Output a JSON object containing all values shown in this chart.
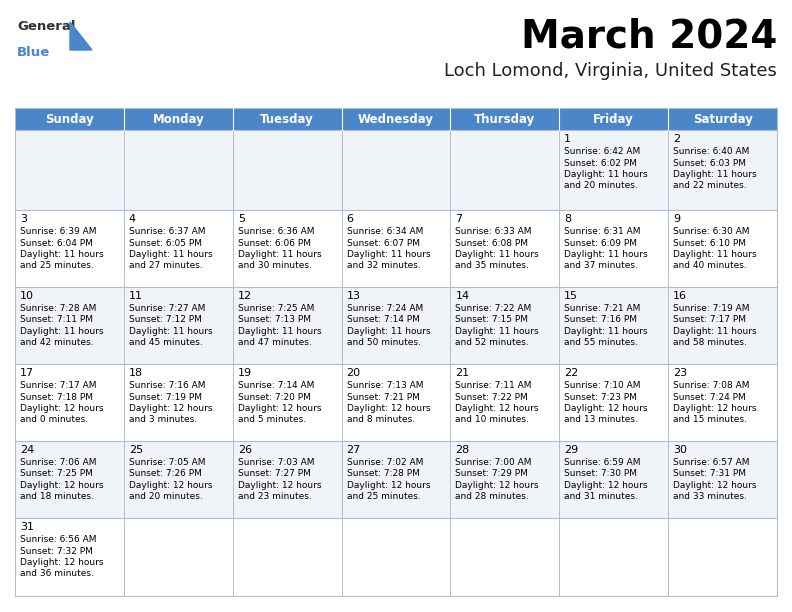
{
  "title": "March 2024",
  "subtitle": "Loch Lomond, Virginia, United States",
  "header_color": "#4a86c8",
  "header_text_color": "#ffffff",
  "cell_bg_odd": "#f0f4f8",
  "cell_bg_even": "#ffffff",
  "border_color": "#b0bcd4",
  "title_fontsize": 28,
  "subtitle_fontsize": 13,
  "dow_fontsize": 8.5,
  "day_num_fontsize": 8,
  "cell_text_fontsize": 6.5,
  "days_of_week": [
    "Sunday",
    "Monday",
    "Tuesday",
    "Wednesday",
    "Thursday",
    "Friday",
    "Saturday"
  ],
  "weeks": [
    [
      {
        "day": "",
        "sunrise": "",
        "sunset": "",
        "daylight": ""
      },
      {
        "day": "",
        "sunrise": "",
        "sunset": "",
        "daylight": ""
      },
      {
        "day": "",
        "sunrise": "",
        "sunset": "",
        "daylight": ""
      },
      {
        "day": "",
        "sunrise": "",
        "sunset": "",
        "daylight": ""
      },
      {
        "day": "",
        "sunrise": "",
        "sunset": "",
        "daylight": ""
      },
      {
        "day": "1",
        "sunrise": "6:42 AM",
        "sunset": "6:02 PM",
        "daylight": "11 hours\nand 20 minutes."
      },
      {
        "day": "2",
        "sunrise": "6:40 AM",
        "sunset": "6:03 PM",
        "daylight": "11 hours\nand 22 minutes."
      }
    ],
    [
      {
        "day": "3",
        "sunrise": "6:39 AM",
        "sunset": "6:04 PM",
        "daylight": "11 hours\nand 25 minutes."
      },
      {
        "day": "4",
        "sunrise": "6:37 AM",
        "sunset": "6:05 PM",
        "daylight": "11 hours\nand 27 minutes."
      },
      {
        "day": "5",
        "sunrise": "6:36 AM",
        "sunset": "6:06 PM",
        "daylight": "11 hours\nand 30 minutes."
      },
      {
        "day": "6",
        "sunrise": "6:34 AM",
        "sunset": "6:07 PM",
        "daylight": "11 hours\nand 32 minutes."
      },
      {
        "day": "7",
        "sunrise": "6:33 AM",
        "sunset": "6:08 PM",
        "daylight": "11 hours\nand 35 minutes."
      },
      {
        "day": "8",
        "sunrise": "6:31 AM",
        "sunset": "6:09 PM",
        "daylight": "11 hours\nand 37 minutes."
      },
      {
        "day": "9",
        "sunrise": "6:30 AM",
        "sunset": "6:10 PM",
        "daylight": "11 hours\nand 40 minutes."
      }
    ],
    [
      {
        "day": "10",
        "sunrise": "7:28 AM",
        "sunset": "7:11 PM",
        "daylight": "11 hours\nand 42 minutes."
      },
      {
        "day": "11",
        "sunrise": "7:27 AM",
        "sunset": "7:12 PM",
        "daylight": "11 hours\nand 45 minutes."
      },
      {
        "day": "12",
        "sunrise": "7:25 AM",
        "sunset": "7:13 PM",
        "daylight": "11 hours\nand 47 minutes."
      },
      {
        "day": "13",
        "sunrise": "7:24 AM",
        "sunset": "7:14 PM",
        "daylight": "11 hours\nand 50 minutes."
      },
      {
        "day": "14",
        "sunrise": "7:22 AM",
        "sunset": "7:15 PM",
        "daylight": "11 hours\nand 52 minutes."
      },
      {
        "day": "15",
        "sunrise": "7:21 AM",
        "sunset": "7:16 PM",
        "daylight": "11 hours\nand 55 minutes."
      },
      {
        "day": "16",
        "sunrise": "7:19 AM",
        "sunset": "7:17 PM",
        "daylight": "11 hours\nand 58 minutes."
      }
    ],
    [
      {
        "day": "17",
        "sunrise": "7:17 AM",
        "sunset": "7:18 PM",
        "daylight": "12 hours\nand 0 minutes."
      },
      {
        "day": "18",
        "sunrise": "7:16 AM",
        "sunset": "7:19 PM",
        "daylight": "12 hours\nand 3 minutes."
      },
      {
        "day": "19",
        "sunrise": "7:14 AM",
        "sunset": "7:20 PM",
        "daylight": "12 hours\nand 5 minutes."
      },
      {
        "day": "20",
        "sunrise": "7:13 AM",
        "sunset": "7:21 PM",
        "daylight": "12 hours\nand 8 minutes."
      },
      {
        "day": "21",
        "sunrise": "7:11 AM",
        "sunset": "7:22 PM",
        "daylight": "12 hours\nand 10 minutes."
      },
      {
        "day": "22",
        "sunrise": "7:10 AM",
        "sunset": "7:23 PM",
        "daylight": "12 hours\nand 13 minutes."
      },
      {
        "day": "23",
        "sunrise": "7:08 AM",
        "sunset": "7:24 PM",
        "daylight": "12 hours\nand 15 minutes."
      }
    ],
    [
      {
        "day": "24",
        "sunrise": "7:06 AM",
        "sunset": "7:25 PM",
        "daylight": "12 hours\nand 18 minutes."
      },
      {
        "day": "25",
        "sunrise": "7:05 AM",
        "sunset": "7:26 PM",
        "daylight": "12 hours\nand 20 minutes."
      },
      {
        "day": "26",
        "sunrise": "7:03 AM",
        "sunset": "7:27 PM",
        "daylight": "12 hours\nand 23 minutes."
      },
      {
        "day": "27",
        "sunrise": "7:02 AM",
        "sunset": "7:28 PM",
        "daylight": "12 hours\nand 25 minutes."
      },
      {
        "day": "28",
        "sunrise": "7:00 AM",
        "sunset": "7:29 PM",
        "daylight": "12 hours\nand 28 minutes."
      },
      {
        "day": "29",
        "sunrise": "6:59 AM",
        "sunset": "7:30 PM",
        "daylight": "12 hours\nand 31 minutes."
      },
      {
        "day": "30",
        "sunrise": "6:57 AM",
        "sunset": "7:31 PM",
        "daylight": "12 hours\nand 33 minutes."
      }
    ],
    [
      {
        "day": "31",
        "sunrise": "6:56 AM",
        "sunset": "7:32 PM",
        "daylight": "12 hours\nand 36 minutes."
      },
      {
        "day": "",
        "sunrise": "",
        "sunset": "",
        "daylight": ""
      },
      {
        "day": "",
        "sunrise": "",
        "sunset": "",
        "daylight": ""
      },
      {
        "day": "",
        "sunrise": "",
        "sunset": "",
        "daylight": ""
      },
      {
        "day": "",
        "sunrise": "",
        "sunset": "",
        "daylight": ""
      },
      {
        "day": "",
        "sunrise": "",
        "sunset": "",
        "daylight": ""
      },
      {
        "day": "",
        "sunrise": "",
        "sunset": "",
        "daylight": ""
      }
    ]
  ]
}
